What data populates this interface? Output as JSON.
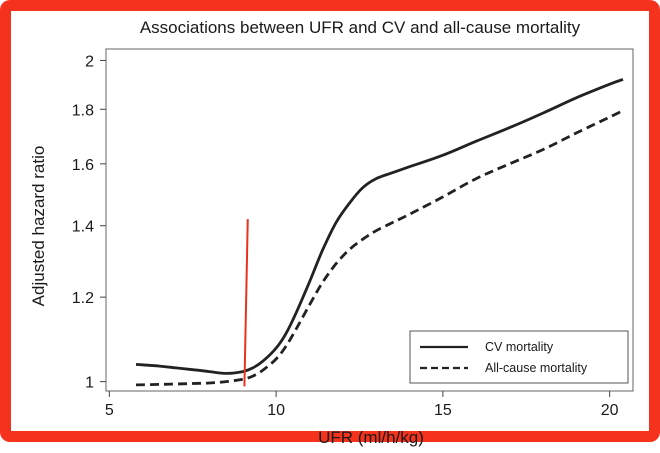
{
  "chart_data": {
    "type": "line",
    "title": "Associations between UFR and CV and all-cause mortality",
    "xlabel": "UFR (ml/h/kg)",
    "ylabel": "Adjusted hazard ratio",
    "xlim": [
      4.9,
      20.7
    ],
    "ylim": [
      0.98,
      2.05
    ],
    "y_scale": "log",
    "x_ticks": [
      5,
      10,
      15,
      20
    ],
    "y_ticks": [
      1,
      1.2,
      1.4,
      1.6,
      1.8,
      2
    ],
    "y_tick_labels": [
      "1",
      "1.2",
      "1.4",
      "1.6",
      "1.8",
      "2"
    ],
    "grid": false,
    "legend_position": "bottom-right",
    "series": [
      {
        "name": "CV mortality",
        "style": "solid",
        "color": "#222222",
        "x": [
          5.8,
          6.5,
          7.0,
          7.5,
          8.0,
          8.5,
          9.0,
          9.3,
          9.6,
          10.0,
          10.3,
          10.6,
          11.0,
          11.4,
          11.8,
          12.2,
          12.6,
          13.0,
          13.5,
          14.0,
          15.0,
          16.0,
          17.0,
          18.0,
          19.0,
          20.0,
          20.4
        ],
        "values": [
          1.038,
          1.034,
          1.03,
          1.026,
          1.022,
          1.018,
          1.022,
          1.03,
          1.045,
          1.075,
          1.11,
          1.16,
          1.24,
          1.33,
          1.41,
          1.47,
          1.52,
          1.55,
          1.57,
          1.59,
          1.63,
          1.68,
          1.73,
          1.785,
          1.845,
          1.9,
          1.92
        ]
      },
      {
        "name": "All-cause mortality",
        "style": "dashed",
        "color": "#222222",
        "x": [
          5.8,
          6.5,
          7.0,
          7.5,
          8.0,
          8.5,
          9.0,
          9.3,
          9.6,
          10.0,
          10.3,
          10.6,
          11.0,
          11.4,
          11.8,
          12.2,
          12.6,
          13.0,
          13.5,
          14.0,
          15.0,
          16.0,
          17.0,
          18.0,
          19.0,
          20.0,
          20.4
        ],
        "values": [
          0.993,
          0.994,
          0.995,
          0.996,
          0.997,
          1.0,
          1.005,
          1.012,
          1.025,
          1.05,
          1.08,
          1.12,
          1.18,
          1.24,
          1.29,
          1.33,
          1.36,
          1.385,
          1.41,
          1.435,
          1.49,
          1.55,
          1.6,
          1.65,
          1.71,
          1.77,
          1.795
        ]
      }
    ],
    "threshold_line": {
      "color": "#e8321c",
      "x": [
        9.05,
        9.15
      ],
      "y": [
        0.99,
        1.42
      ]
    }
  }
}
